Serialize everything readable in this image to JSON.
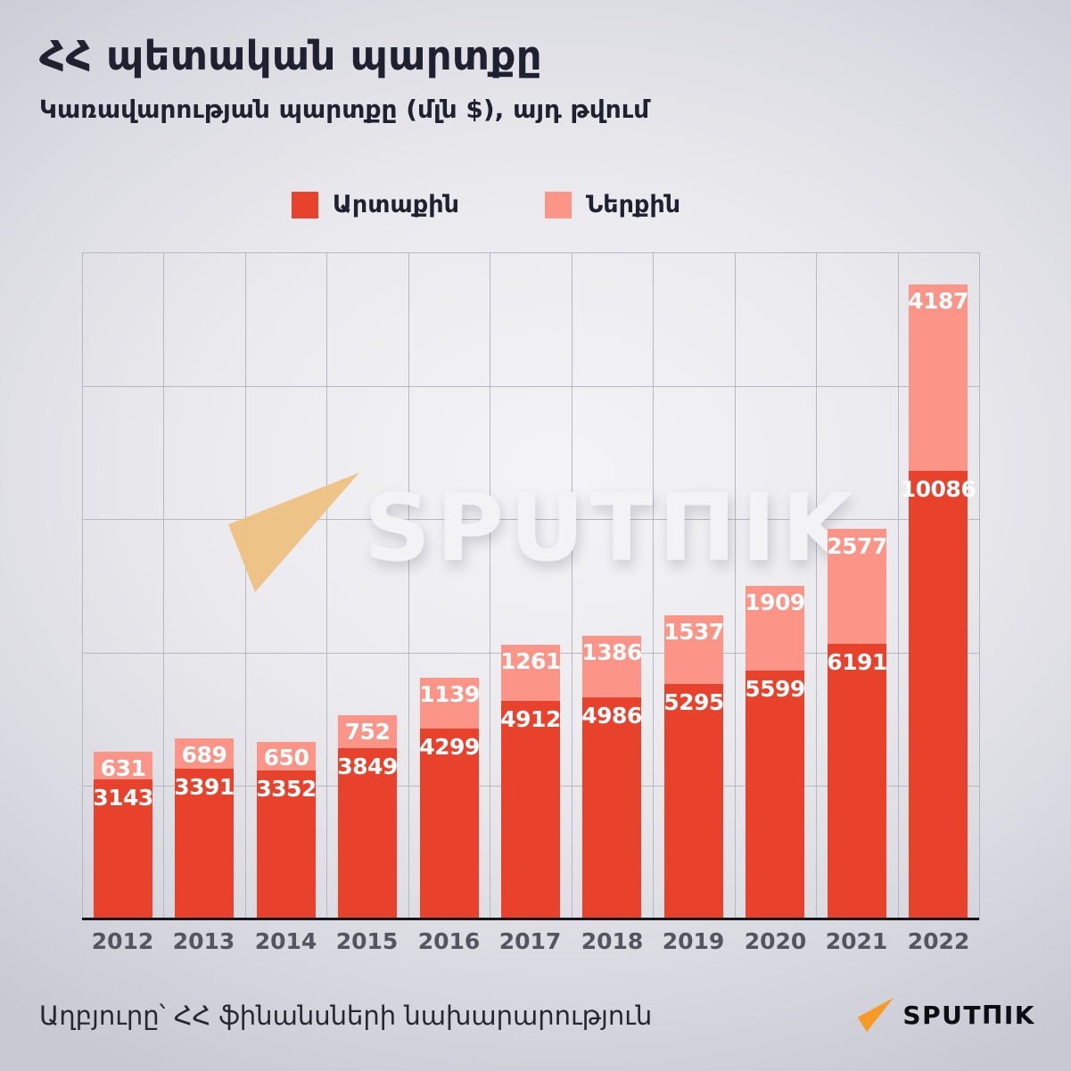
{
  "header": {
    "title": "ՀՀ պետական պարտքը",
    "subtitle": "Կառավարության պարտքը (մլն $), այդ թվում"
  },
  "legend": [
    {
      "label": "Արտաքին",
      "color": "#e8422d"
    },
    {
      "label": "Ներքին",
      "color": "#fc9488"
    }
  ],
  "chart_data": {
    "type": "bar",
    "stacked": true,
    "title": "ՀՀ պետական պարտքը",
    "subtitle": "Կառավարության պարտքը (մլն $), այդ թվում",
    "categories": [
      "2012",
      "2013",
      "2014",
      "2015",
      "2016",
      "2017",
      "2018",
      "2019",
      "2020",
      "2021",
      "2022"
    ],
    "series": [
      {
        "name": "Արտաքին",
        "color": "#e8422d",
        "values": [
          3143,
          3391,
          3352,
          3849,
          4299,
          4912,
          4986,
          5295,
          5599,
          6191,
          10086
        ]
      },
      {
        "name": "Ներքին",
        "color": "#fc9488",
        "values": [
          631,
          689,
          650,
          752,
          1139,
          1261,
          1386,
          1537,
          1909,
          2577,
          4187
        ]
      }
    ],
    "value_labels": true,
    "ylim": [
      0,
      15000
    ],
    "grid": true,
    "grid_step": 3000,
    "legend_position": "top",
    "xlabel": "",
    "ylabel": ""
  },
  "watermark": {
    "text": "SPUTΠIK"
  },
  "footer": {
    "source": "Աղբյուրը՝ ՀՀ ֆինանսների նախարարություն",
    "logo_text": "SPUTΠIK"
  },
  "colors": {
    "external_red": "#e8422d",
    "internal_salmon": "#fc9488",
    "title_text": "#1f2130",
    "axis_line": "#16171c",
    "gridline": "#b7b8c2",
    "year_label": "#54555e",
    "watermark_plane": "#eec182",
    "logo_orange": "#f89b26",
    "background_edge": "#c9c9d4"
  }
}
